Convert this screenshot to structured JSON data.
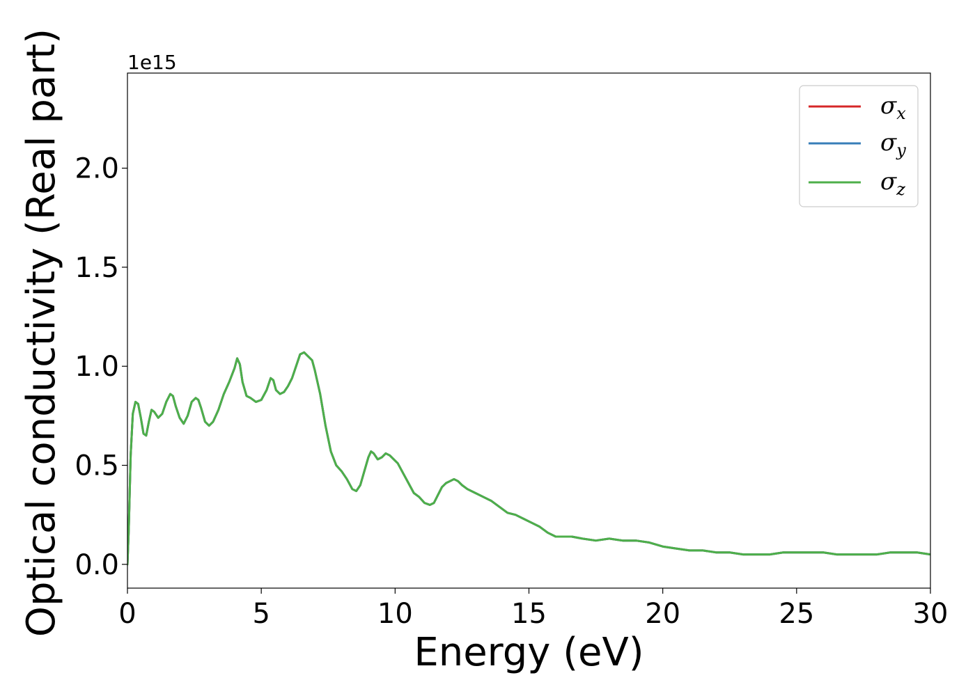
{
  "chart_data": {
    "type": "line",
    "xlabel": "Energy (eV)",
    "ylabel": "Optical conductivity (Real part)",
    "y_offset_label": "1e15",
    "xlim": [
      0,
      30
    ],
    "ylim": [
      -0.12,
      2.48
    ],
    "x_ticks": [
      0,
      5,
      10,
      15,
      20,
      25,
      30
    ],
    "x_tick_labels": [
      "0",
      "5",
      "10",
      "15",
      "20",
      "25",
      "30"
    ],
    "y_ticks": [
      0.0,
      0.5,
      1.0,
      1.5,
      2.0
    ],
    "y_tick_labels": [
      "0.0",
      "0.5",
      "1.0",
      "1.5",
      "2.0"
    ],
    "grid": false,
    "legend_position": "top-right",
    "series": [
      {
        "name": "σx",
        "symbol": "σ",
        "subscript": "x",
        "color": "#d62728",
        "x": [
          0,
          0.05,
          0.12,
          0.2,
          0.3,
          0.4,
          0.5,
          0.6,
          0.7,
          0.8,
          0.9,
          1.0,
          1.15,
          1.3,
          1.45,
          1.6,
          1.7,
          1.8,
          1.95,
          2.1,
          2.25,
          2.4,
          2.55,
          2.65,
          2.75,
          2.9,
          3.05,
          3.2,
          3.4,
          3.6,
          3.8,
          4.0,
          4.1,
          4.2,
          4.3,
          4.45,
          4.6,
          4.8,
          5.0,
          5.2,
          5.35,
          5.45,
          5.55,
          5.7,
          5.85,
          6.0,
          6.15,
          6.3,
          6.45,
          6.6,
          6.75,
          6.9,
          7.0,
          7.2,
          7.4,
          7.6,
          7.8,
          8.0,
          8.2,
          8.4,
          8.55,
          8.7,
          8.85,
          9.0,
          9.1,
          9.2,
          9.35,
          9.5,
          9.65,
          9.8,
          9.95,
          10.1,
          10.3,
          10.5,
          10.7,
          10.9,
          11.1,
          11.3,
          11.45,
          11.6,
          11.75,
          11.9,
          12.05,
          12.2,
          12.35,
          12.5,
          12.7,
          13.0,
          13.3,
          13.6,
          13.9,
          14.2,
          14.5,
          14.8,
          15.1,
          15.4,
          15.7,
          16.0,
          16.3,
          16.6,
          17.0,
          17.5,
          18.0,
          18.5,
          19.0,
          19.5,
          20.0,
          20.5,
          21.0,
          21.5,
          22.0,
          22.5,
          23.0,
          23.5,
          24.0,
          24.5,
          25.0,
          25.5,
          26.0,
          26.5,
          27.0,
          27.5,
          28.0,
          28.5,
          29.0,
          29.5,
          30.0
        ],
        "y": [
          0.0,
          0.18,
          0.55,
          0.76,
          0.82,
          0.81,
          0.74,
          0.66,
          0.65,
          0.72,
          0.78,
          0.77,
          0.74,
          0.76,
          0.82,
          0.86,
          0.85,
          0.8,
          0.74,
          0.71,
          0.75,
          0.82,
          0.84,
          0.83,
          0.79,
          0.72,
          0.7,
          0.72,
          0.78,
          0.86,
          0.92,
          0.99,
          1.04,
          1.01,
          0.92,
          0.85,
          0.84,
          0.82,
          0.83,
          0.88,
          0.94,
          0.93,
          0.88,
          0.86,
          0.87,
          0.9,
          0.94,
          1.0,
          1.06,
          1.07,
          1.05,
          1.03,
          0.98,
          0.86,
          0.7,
          0.57,
          0.5,
          0.47,
          0.43,
          0.38,
          0.37,
          0.4,
          0.47,
          0.54,
          0.57,
          0.56,
          0.53,
          0.54,
          0.56,
          0.55,
          0.53,
          0.51,
          0.46,
          0.41,
          0.36,
          0.34,
          0.31,
          0.3,
          0.31,
          0.35,
          0.39,
          0.41,
          0.42,
          0.43,
          0.42,
          0.4,
          0.38,
          0.36,
          0.34,
          0.32,
          0.29,
          0.26,
          0.25,
          0.23,
          0.21,
          0.19,
          0.16,
          0.14,
          0.14,
          0.14,
          0.13,
          0.12,
          0.13,
          0.12,
          0.12,
          0.11,
          0.09,
          0.08,
          0.07,
          0.07,
          0.06,
          0.06,
          0.05,
          0.05,
          0.05,
          0.06,
          0.06,
          0.06,
          0.06,
          0.05,
          0.05,
          0.05,
          0.05,
          0.06,
          0.06,
          0.06,
          0.05
        ]
      },
      {
        "name": "σy",
        "symbol": "σ",
        "subscript": "y",
        "color": "#377eb8",
        "same_as": 0
      },
      {
        "name": "σz",
        "symbol": "σ",
        "subscript": "z",
        "color": "#4daf4a",
        "same_as": 0
      }
    ]
  }
}
